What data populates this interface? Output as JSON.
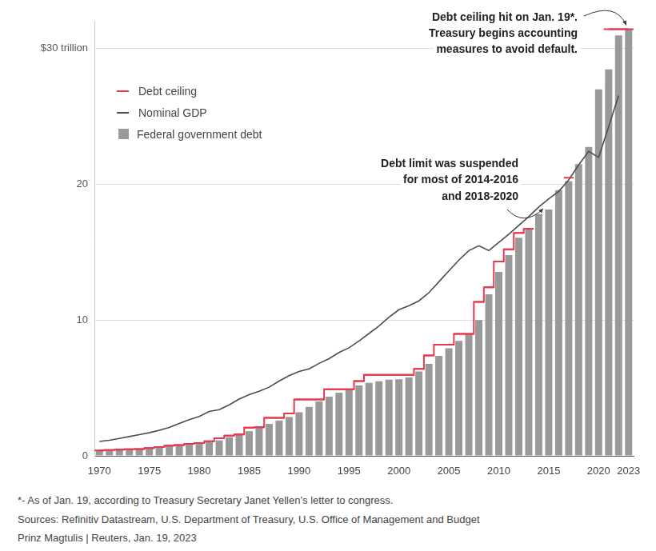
{
  "chart_data": {
    "type": "bar",
    "categories": [
      "1970",
      null,
      null,
      null,
      null,
      "1975",
      null,
      null,
      null,
      null,
      "1980",
      null,
      null,
      null,
      null,
      "1985",
      null,
      null,
      null,
      null,
      "1990",
      null,
      null,
      null,
      null,
      "1995",
      null,
      null,
      null,
      null,
      "2000",
      null,
      null,
      null,
      null,
      "2005",
      null,
      null,
      null,
      null,
      "2010",
      null,
      null,
      null,
      null,
      "2015",
      null,
      null,
      null,
      null,
      "2020",
      null,
      null,
      "2023"
    ],
    "series": [
      {
        "name": "Debt ceiling",
        "type": "line",
        "color": "#e5394e",
        "marker": "dash",
        "line_style": "stepped",
        "values": [
          0.4,
          0.43,
          0.45,
          0.48,
          0.5,
          0.58,
          0.64,
          0.75,
          0.8,
          0.88,
          0.94,
          1.08,
          1.29,
          1.49,
          1.57,
          2.08,
          2.11,
          2.8,
          2.8,
          3.12,
          4.15,
          4.15,
          4.15,
          4.9,
          4.9,
          4.9,
          5.5,
          5.95,
          5.95,
          5.95,
          5.95,
          5.95,
          6.4,
          7.38,
          8.18,
          8.18,
          8.97,
          8.97,
          11.32,
          12.39,
          14.29,
          15.19,
          16.39,
          16.7,
          null,
          null,
          null,
          20.46,
          null,
          null,
          null,
          31.38,
          31.38,
          31.38
        ]
      },
      {
        "name": "Nominal GDP",
        "type": "line",
        "color": "#4d4d4d",
        "marker": "none",
        "line_style": "solid",
        "values": [
          1.06,
          1.15,
          1.28,
          1.42,
          1.56,
          1.7,
          1.88,
          2.09,
          2.38,
          2.66,
          2.9,
          3.26,
          3.4,
          3.75,
          4.18,
          4.5,
          4.75,
          5.05,
          5.5,
          5.9,
          6.2,
          6.4,
          6.8,
          7.15,
          7.6,
          7.95,
          8.45,
          9.0,
          9.55,
          10.2,
          10.75,
          11.05,
          11.4,
          12.0,
          12.8,
          13.6,
          14.4,
          15.1,
          15.45,
          15.1,
          15.7,
          16.3,
          16.95,
          17.6,
          18.3,
          18.9,
          19.45,
          20.3,
          21.4,
          22.4,
          21.95,
          24.2,
          26.5,
          null
        ]
      },
      {
        "name": "Federal government debt",
        "type": "bar",
        "color": "#999999",
        "values": [
          0.38,
          0.41,
          0.44,
          0.47,
          0.48,
          0.54,
          0.63,
          0.71,
          0.78,
          0.83,
          0.91,
          1.0,
          1.14,
          1.37,
          1.56,
          1.82,
          2.13,
          2.35,
          2.6,
          2.86,
          3.21,
          3.6,
          4.0,
          4.35,
          4.64,
          4.92,
          5.18,
          5.37,
          5.48,
          5.61,
          5.63,
          5.77,
          6.2,
          6.76,
          7.35,
          7.91,
          8.45,
          8.95,
          9.99,
          11.88,
          13.53,
          14.76,
          16.05,
          16.72,
          17.79,
          18.12,
          19.54,
          20.21,
          21.46,
          22.72,
          26.95,
          28.43,
          30.93,
          31.4
        ]
      }
    ],
    "ylim": [
      0,
      32
    ],
    "yticks": [
      0,
      10,
      20,
      {
        "value": 30,
        "label": "$30 trillion"
      }
    ],
    "grid": true,
    "legend": "upper left",
    "annotations": [
      {
        "text": [
          "Debt ceiling hit on Jan. 19*.",
          "Treasury begins accounting",
          "measures to avoid default."
        ]
      },
      {
        "text": [
          "Debt limit was suspended",
          "for most of 2014-2016",
          "and 2018-2020"
        ]
      }
    ],
    "footnote": "*- As of Jan. 19, according to Treasury Secretary Janet Yellen’s letter to congress.",
    "source": "Sources: Refinitiv Datastream, U.S. Department of Treasury, U.S. Office of Management and Budget",
    "credit": "Prinz Magtulis | Reuters, Jan. 19, 2023"
  }
}
